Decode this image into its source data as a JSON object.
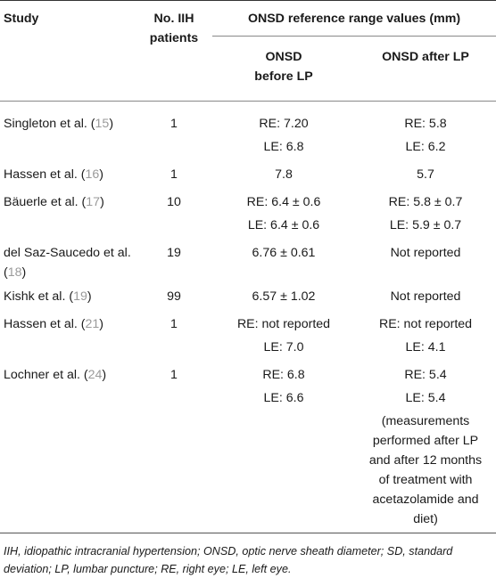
{
  "headers": {
    "study": "Study",
    "patients": "No. IIH patients",
    "range": "ONSD reference range values (mm)",
    "before": "ONSD before LP",
    "after": "ONSD after LP"
  },
  "rows": [
    {
      "study": "Singleton et al. (",
      "ref": "15",
      "close": ")",
      "patients": "1",
      "before": [
        "RE: 7.20",
        "LE: 6.8"
      ],
      "after": [
        "RE: 5.8",
        "LE: 6.2"
      ]
    },
    {
      "study": "Hassen et al. (",
      "ref": "16",
      "close": ")",
      "patients": "1",
      "before": [
        "7.8"
      ],
      "after": [
        "5.7"
      ]
    },
    {
      "study": "Bäuerle et al. (",
      "ref": "17",
      "close": ")",
      "patients": "10",
      "before": [
        "RE: 6.4 ± 0.6",
        "LE: 6.4 ± 0.6"
      ],
      "after": [
        "RE: 5.8 ± 0.7",
        "LE: 5.9 ± 0.7"
      ]
    },
    {
      "study": "del Saz-Saucedo et al. (",
      "ref": "18",
      "close": ")",
      "patients": "19",
      "before": [
        "6.76 ± 0.61"
      ],
      "after": [
        "Not reported"
      ]
    },
    {
      "study": "Kishk et al. (",
      "ref": "19",
      "close": ")",
      "patients": "99",
      "before": [
        "6.57 ± 1.02"
      ],
      "after": [
        "Not reported"
      ]
    },
    {
      "study": "Hassen et al. (",
      "ref": "21",
      "close": ")",
      "patients": "1",
      "before": [
        "RE: not reported",
        "LE: 7.0"
      ],
      "after": [
        "RE: not reported",
        "LE: 4.1"
      ]
    },
    {
      "study": "Lochner et al. (",
      "ref": "24",
      "close": ")",
      "patients": "1",
      "before": [
        "RE: 6.8",
        "LE: 6.6"
      ],
      "after": [
        "RE: 5.4",
        "LE: 5.4",
        "(measurements performed after LP and after 12 months of treatment with acetazolamide and diet)"
      ]
    }
  ],
  "footnote": "IIH, idiopathic intracranial hypertension; ONSD, optic nerve sheath diameter; SD, standard deviation; LP, lumbar puncture; RE, right eye; LE, left eye."
}
